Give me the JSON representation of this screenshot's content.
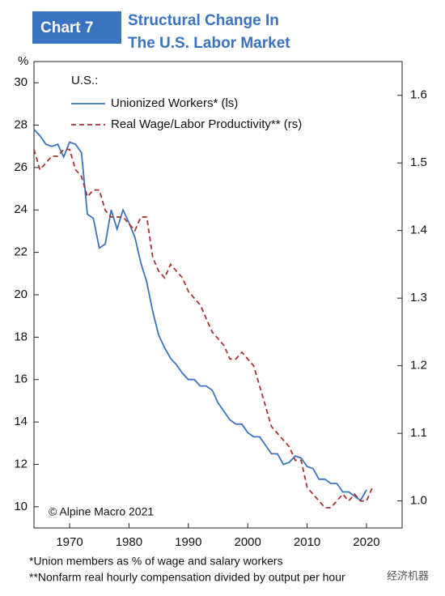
{
  "chart_data": {
    "type": "line",
    "chart_label": "Chart 7",
    "title": [
      "Structural Change In",
      "The U.S. Labor Market"
    ],
    "y_unit": "%",
    "legend_title": "U.S.:",
    "annotation": "© Alpine Macro 2021",
    "footnotes": [
      "*Union members as % of wage and salary workers",
      "**Nonfarm real hourly compensation divided by output per hour"
    ],
    "watermark": "经济机器",
    "x": [
      1964,
      1965,
      1966,
      1967,
      1968,
      1969,
      1970,
      1971,
      1972,
      1973,
      1974,
      1975,
      1976,
      1977,
      1978,
      1979,
      1980,
      1981,
      1982,
      1983,
      1984,
      1985,
      1986,
      1987,
      1988,
      1989,
      1990,
      1991,
      1992,
      1993,
      1994,
      1995,
      1996,
      1997,
      1998,
      1999,
      2000,
      2001,
      2002,
      2003,
      2004,
      2005,
      2006,
      2007,
      2008,
      2009,
      2010,
      2011,
      2012,
      2013,
      2014,
      2015,
      2016,
      2017,
      2018,
      2019,
      2020,
      2021
    ],
    "series": [
      {
        "name": "Unionized Workers* (ls)",
        "color": "#3a74c0",
        "dash": false,
        "values": [
          27.8,
          27.5,
          27.1,
          27.0,
          27.1,
          26.5,
          27.2,
          27.1,
          26.7,
          23.8,
          23.6,
          22.2,
          22.4,
          24.0,
          23.1,
          24.0,
          23.4,
          22.7,
          21.5,
          20.6,
          19.2,
          18.1,
          17.5,
          17.0,
          16.7,
          16.3,
          16.0,
          16.0,
          15.7,
          15.7,
          15.5,
          14.9,
          14.5,
          14.1,
          13.9,
          13.9,
          13.5,
          13.3,
          13.3,
          12.9,
          12.5,
          12.5,
          12.0,
          12.1,
          12.4,
          12.3,
          11.9,
          11.8,
          11.3,
          11.3,
          11.1,
          11.1,
          10.7,
          10.7,
          10.5,
          10.3,
          10.8,
          null
        ]
      },
      {
        "name": "Real Wage/Labor Productivity** (rs)",
        "color": "#a83232",
        "dash": true,
        "axis": "y2",
        "values": [
          1.52,
          1.49,
          1.5,
          1.51,
          1.51,
          1.52,
          1.52,
          1.49,
          1.48,
          1.45,
          1.46,
          1.46,
          1.43,
          1.42,
          1.42,
          1.42,
          1.41,
          1.4,
          1.42,
          1.42,
          1.36,
          1.34,
          1.33,
          1.35,
          1.34,
          1.33,
          1.31,
          1.3,
          1.29,
          1.27,
          1.25,
          1.24,
          1.23,
          1.21,
          1.21,
          1.22,
          1.21,
          1.2,
          1.17,
          1.14,
          1.11,
          1.1,
          1.09,
          1.08,
          1.06,
          1.06,
          1.02,
          1.01,
          1.0,
          0.99,
          0.99,
          1.0,
          1.01,
          1.0,
          1.01,
          1.0,
          1.0,
          1.02
        ]
      }
    ],
    "xlim": [
      1964,
      2026
    ],
    "xticks": [
      1970,
      1980,
      1990,
      2000,
      2010,
      2020
    ],
    "ylim": [
      9,
      31
    ],
    "yticks": [
      10,
      12,
      14,
      16,
      18,
      20,
      22,
      24,
      26,
      28,
      30
    ],
    "y2lim": [
      0.96,
      1.65
    ],
    "y2ticks": [
      {
        "value": 1,
        "label": "1.0"
      },
      1.1,
      1.2,
      1.3,
      1.4,
      1.5,
      1.6
    ],
    "grid": false
  }
}
